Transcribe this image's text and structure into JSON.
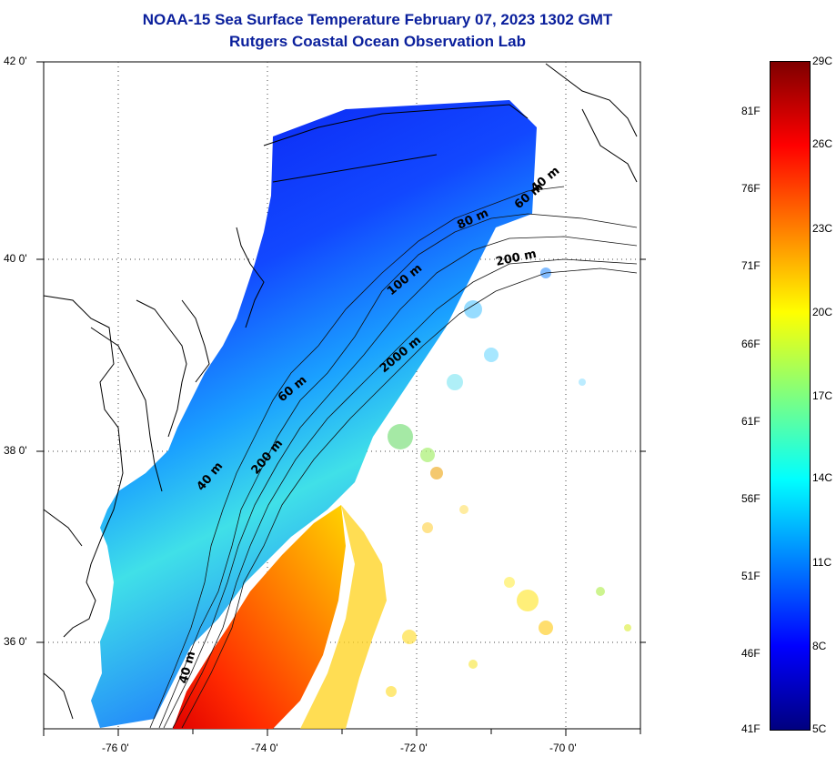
{
  "title_line1": "NOAA-15 Sea Surface Temperature February 07, 2023 1302 GMT",
  "title_line2": "Rutgers Coastal Ocean Observation Lab",
  "lat_ticks": [
    "42 0'",
    "40 0'",
    "38 0'",
    "36 0'"
  ],
  "lon_ticks": [
    "-76 0'",
    "-74 0'",
    "-72 0'",
    "-70 0'"
  ],
  "contour_labels": [
    "40 m",
    "60 m",
    "80 m",
    "100 m",
    "200 m",
    "2000 m",
    "60 m",
    "200 m",
    "40 m",
    "40 m"
  ],
  "colorbar": {
    "fahrenheit": [
      "81F",
      "76F",
      "71F",
      "66F",
      "61F",
      "56F",
      "51F",
      "46F",
      "41F"
    ],
    "celsius": [
      "29C",
      "26C",
      "23C",
      "20C",
      "17C",
      "14C",
      "11C",
      "8C",
      "5C"
    ],
    "colors": [
      "#00007f",
      "#0000ff",
      "#007fff",
      "#00ffff",
      "#7fff7f",
      "#ffff00",
      "#ff7f00",
      "#ff0000",
      "#7f0000"
    ]
  }
}
